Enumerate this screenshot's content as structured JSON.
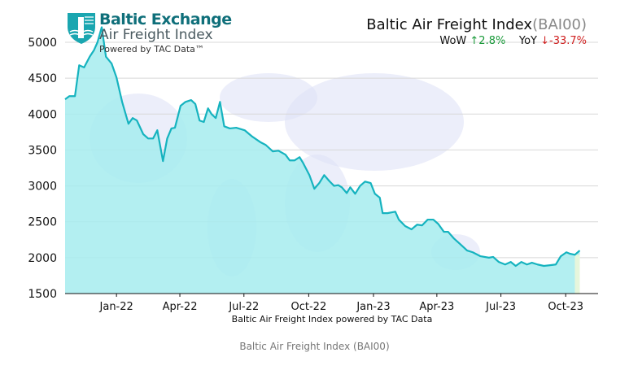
{
  "header": {
    "logo_brand": "Baltic Exchange",
    "logo_product": "Air Freight Index",
    "logo_powered": "Powered by TAC Data™",
    "title": "Baltic Air Freight Index",
    "title_code": "(BAI00)",
    "wow_label": "WoW",
    "wow_value": "↑2.8%",
    "yoy_label": "YoY",
    "yoy_value": "↓-33.7%"
  },
  "caption": "Baltic Air Freight Index (BAI00)",
  "colors": {
    "line": "#16b3bf",
    "fill": "#a6ecee",
    "up": "#1a9a3a",
    "down": "#d02020",
    "grid": "#d8d8d8"
  },
  "chart_data": {
    "type": "area",
    "title": "Baltic Air Freight Index(BAI00)",
    "xlabel": "Baltic Air Freight Index powered by TAC Data",
    "ylabel": "",
    "ylim": [
      1500,
      5000
    ],
    "xlim": [
      "2021-10-20",
      "2023-11-16"
    ],
    "grid": true,
    "yticks": [
      1500,
      2000,
      2500,
      3000,
      3500,
      4000,
      4500,
      5000
    ],
    "xticks": [
      {
        "date": "2022-01-01",
        "label": "Jan-22"
      },
      {
        "date": "2022-04-01",
        "label": "Apr-22"
      },
      {
        "date": "2022-07-01",
        "label": "Jul-22"
      },
      {
        "date": "2022-10-01",
        "label": "Oct-22"
      },
      {
        "date": "2023-01-01",
        "label": "Jan-23"
      },
      {
        "date": "2023-04-01",
        "label": "Apr-23"
      },
      {
        "date": "2023-07-01",
        "label": "Jul-23"
      },
      {
        "date": "2023-10-01",
        "label": "Oct-23"
      }
    ],
    "points": [
      [
        "2021-10-20",
        4206
      ],
      [
        "2021-10-26",
        4250
      ],
      [
        "2021-11-03",
        4250
      ],
      [
        "2021-11-09",
        4680
      ],
      [
        "2021-11-16",
        4650
      ],
      [
        "2021-11-24",
        4800
      ],
      [
        "2021-11-30",
        4890
      ],
      [
        "2021-12-05",
        5000
      ],
      [
        "2021-12-11",
        5210
      ],
      [
        "2021-12-17",
        4800
      ],
      [
        "2021-12-25",
        4705
      ],
      [
        "2022-01-01",
        4510
      ],
      [
        "2022-01-09",
        4170
      ],
      [
        "2022-01-18",
        3865
      ],
      [
        "2022-01-24",
        3945
      ],
      [
        "2022-01-30",
        3910
      ],
      [
        "2022-02-08",
        3720
      ],
      [
        "2022-02-15",
        3660
      ],
      [
        "2022-02-22",
        3660
      ],
      [
        "2022-02-28",
        3775
      ],
      [
        "2022-03-08",
        3345
      ],
      [
        "2022-03-14",
        3660
      ],
      [
        "2022-03-20",
        3800
      ],
      [
        "2022-03-25",
        3810
      ],
      [
        "2022-04-02",
        4115
      ],
      [
        "2022-04-09",
        4170
      ],
      [
        "2022-04-17",
        4195
      ],
      [
        "2022-04-23",
        4140
      ],
      [
        "2022-04-29",
        3910
      ],
      [
        "2022-05-05",
        3890
      ],
      [
        "2022-05-11",
        4080
      ],
      [
        "2022-05-16",
        4000
      ],
      [
        "2022-05-22",
        3945
      ],
      [
        "2022-05-28",
        4170
      ],
      [
        "2022-06-03",
        3830
      ],
      [
        "2022-06-11",
        3800
      ],
      [
        "2022-06-20",
        3810
      ],
      [
        "2022-07-02",
        3775
      ],
      [
        "2022-07-13",
        3685
      ],
      [
        "2022-07-25",
        3605
      ],
      [
        "2022-08-01",
        3570
      ],
      [
        "2022-08-11",
        3480
      ],
      [
        "2022-08-19",
        3490
      ],
      [
        "2022-08-29",
        3435
      ],
      [
        "2022-09-04",
        3355
      ],
      [
        "2022-09-11",
        3355
      ],
      [
        "2022-09-18",
        3400
      ],
      [
        "2022-09-23",
        3320
      ],
      [
        "2022-10-02",
        3150
      ],
      [
        "2022-10-09",
        2960
      ],
      [
        "2022-10-16",
        3040
      ],
      [
        "2022-10-23",
        3150
      ],
      [
        "2022-10-30",
        3070
      ],
      [
        "2022-11-06",
        3000
      ],
      [
        "2022-11-12",
        3010
      ],
      [
        "2022-11-17",
        2980
      ],
      [
        "2022-11-24",
        2900
      ],
      [
        "2022-11-29",
        2980
      ],
      [
        "2022-12-06",
        2890
      ],
      [
        "2022-12-13",
        3000
      ],
      [
        "2022-12-20",
        3060
      ],
      [
        "2022-12-28",
        3040
      ],
      [
        "2023-01-03",
        2890
      ],
      [
        "2023-01-10",
        2835
      ],
      [
        "2023-01-14",
        2620
      ],
      [
        "2023-01-21",
        2620
      ],
      [
        "2023-02-01",
        2640
      ],
      [
        "2023-02-06",
        2530
      ],
      [
        "2023-02-15",
        2440
      ],
      [
        "2023-02-24",
        2395
      ],
      [
        "2023-03-04",
        2460
      ],
      [
        "2023-03-11",
        2450
      ],
      [
        "2023-03-19",
        2530
      ],
      [
        "2023-03-27",
        2530
      ],
      [
        "2023-04-03",
        2470
      ],
      [
        "2023-04-11",
        2360
      ],
      [
        "2023-04-17",
        2360
      ],
      [
        "2023-04-25",
        2270
      ],
      [
        "2023-05-04",
        2190
      ],
      [
        "2023-05-14",
        2100
      ],
      [
        "2023-05-22",
        2075
      ],
      [
        "2023-06-02",
        2020
      ],
      [
        "2023-06-14",
        2000
      ],
      [
        "2023-06-20",
        2010
      ],
      [
        "2023-06-28",
        1940
      ],
      [
        "2023-07-07",
        1905
      ],
      [
        "2023-07-15",
        1940
      ],
      [
        "2023-07-22",
        1885
      ],
      [
        "2023-07-30",
        1940
      ],
      [
        "2023-08-07",
        1905
      ],
      [
        "2023-08-14",
        1930
      ],
      [
        "2023-08-22",
        1905
      ],
      [
        "2023-08-31",
        1885
      ],
      [
        "2023-09-09",
        1895
      ],
      [
        "2023-09-17",
        1905
      ],
      [
        "2023-09-24",
        2020
      ],
      [
        "2023-10-02",
        2075
      ],
      [
        "2023-10-07",
        2055
      ],
      [
        "2023-10-14",
        2040
      ],
      [
        "2023-10-21",
        2100
      ]
    ]
  }
}
